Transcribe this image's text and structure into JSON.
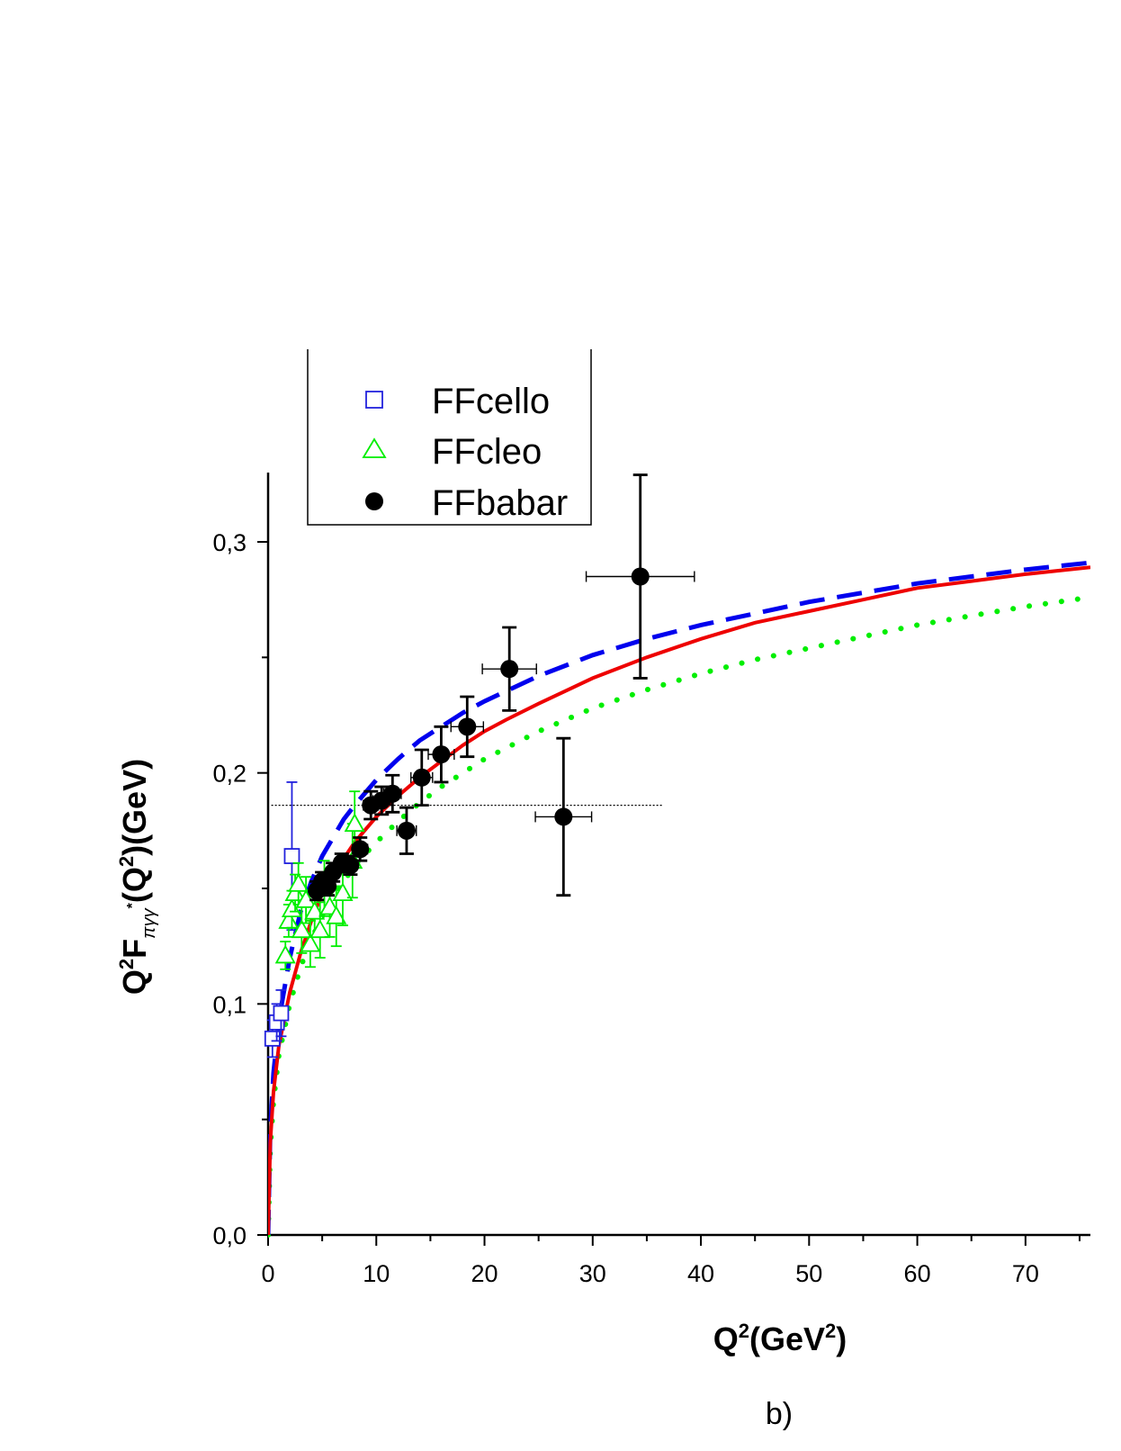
{
  "chart_data": {
    "type": "scatter",
    "caption": "b)",
    "xlabel": {
      "base": "Q",
      "sup1": "2",
      "mid": "(GeV",
      "sup2": "2",
      "end": ")"
    },
    "ylabel": {
      "q": "Q",
      "sup": "2",
      "f": "F",
      "sub": "πγγ",
      "subsup": "*",
      "rest1": "(Q",
      "sup3": "2",
      "rest2": ")(GeV)"
    },
    "xlim": [
      0,
      76
    ],
    "ylim": [
      0,
      0.33
    ],
    "x_ticks": [
      "0",
      "10",
      "20",
      "30",
      "40",
      "50",
      "60",
      "70"
    ],
    "y_ticks": [
      "0,0",
      "0,1",
      "0,2",
      "0,3"
    ],
    "legend": [
      "FFcello",
      "FFcleo",
      "FFbabar"
    ],
    "colors": {
      "cello": "#2222dd",
      "cleo": "#00ee00",
      "babar": "#000000",
      "dashed": "#0000ee",
      "solid": "#ee0000",
      "dotted": "#00ee00"
    },
    "reference_line": {
      "y": 0.186,
      "x_range": [
        0.3,
        36.5
      ]
    },
    "series": [
      {
        "name": "FFcello",
        "marker": "square",
        "points": [
          {
            "x": 0.4,
            "y": 0.085,
            "ey": 0.008
          },
          {
            "x": 0.8,
            "y": 0.092,
            "ey": 0.008
          },
          {
            "x": 1.2,
            "y": 0.096,
            "ey": 0.01
          },
          {
            "x": 2.2,
            "y": 0.164,
            "ey": 0.032
          }
        ]
      },
      {
        "name": "FFcleo",
        "marker": "triangle",
        "points": [
          {
            "x": 1.6,
            "y": 0.121,
            "ey": 0.006
          },
          {
            "x": 1.9,
            "y": 0.136,
            "ey": 0.007
          },
          {
            "x": 2.2,
            "y": 0.141,
            "ey": 0.008
          },
          {
            "x": 2.5,
            "y": 0.148,
            "ey": 0.008
          },
          {
            "x": 2.8,
            "y": 0.152,
            "ey": 0.009
          },
          {
            "x": 3.1,
            "y": 0.132,
            "ey": 0.01
          },
          {
            "x": 3.5,
            "y": 0.145,
            "ey": 0.01
          },
          {
            "x": 3.9,
            "y": 0.126,
            "ey": 0.01
          },
          {
            "x": 4.3,
            "y": 0.14,
            "ey": 0.011
          },
          {
            "x": 4.8,
            "y": 0.132,
            "ey": 0.012
          },
          {
            "x": 5.2,
            "y": 0.15,
            "ey": 0.012
          },
          {
            "x": 5.7,
            "y": 0.142,
            "ey": 0.013
          },
          {
            "x": 6.3,
            "y": 0.138,
            "ey": 0.013
          },
          {
            "x": 6.9,
            "y": 0.148,
            "ey": 0.014
          },
          {
            "x": 7.8,
            "y": 0.162,
            "ey": 0.016
          },
          {
            "x": 8.0,
            "y": 0.178,
            "ey": 0.014
          }
        ]
      },
      {
        "name": "FFbabar",
        "marker": "circle",
        "points": [
          {
            "x": 4.5,
            "y": 0.149,
            "ey": 0.004,
            "ex": 0.5
          },
          {
            "x": 5.0,
            "y": 0.153,
            "ey": 0.004,
            "ex": 0.5
          },
          {
            "x": 5.5,
            "y": 0.151,
            "ey": 0.004,
            "ex": 0.5
          },
          {
            "x": 6.0,
            "y": 0.157,
            "ey": 0.004,
            "ex": 0.5
          },
          {
            "x": 6.8,
            "y": 0.161,
            "ey": 0.004,
            "ex": 0.6
          },
          {
            "x": 7.6,
            "y": 0.16,
            "ey": 0.004,
            "ex": 0.6
          },
          {
            "x": 8.5,
            "y": 0.167,
            "ey": 0.005,
            "ex": 0.7
          },
          {
            "x": 9.5,
            "y": 0.186,
            "ey": 0.006,
            "ex": 0.7
          },
          {
            "x": 10.5,
            "y": 0.188,
            "ey": 0.006,
            "ex": 0.8
          },
          {
            "x": 11.5,
            "y": 0.191,
            "ey": 0.008,
            "ex": 0.8
          },
          {
            "x": 12.8,
            "y": 0.175,
            "ey": 0.01,
            "ex": 0.9
          },
          {
            "x": 14.2,
            "y": 0.198,
            "ey": 0.012,
            "ex": 1.0
          },
          {
            "x": 16.0,
            "y": 0.208,
            "ey": 0.012,
            "ex": 1.2
          },
          {
            "x": 18.4,
            "y": 0.22,
            "ey": 0.013,
            "ex": 1.5
          },
          {
            "x": 22.3,
            "y": 0.245,
            "ey": 0.018,
            "ex": 2.5
          },
          {
            "x": 27.3,
            "y": 0.181,
            "ey": 0.034,
            "ex": 2.6
          },
          {
            "x": 34.4,
            "y": 0.285,
            "ey": 0.044,
            "ex": 5.0
          }
        ]
      }
    ],
    "curves": [
      {
        "style": "dashed",
        "x": [
          0,
          0.2,
          0.5,
          1,
          2,
          3,
          4,
          5,
          6,
          7,
          8,
          10,
          12,
          14,
          16,
          18,
          20,
          25,
          30,
          35,
          40,
          45,
          50,
          55,
          60,
          65,
          70,
          76
        ],
        "y": [
          0,
          0.045,
          0.07,
          0.093,
          0.12,
          0.14,
          0.153,
          0.164,
          0.172,
          0.18,
          0.186,
          0.197,
          0.206,
          0.214,
          0.22,
          0.226,
          0.231,
          0.242,
          0.251,
          0.258,
          0.264,
          0.269,
          0.274,
          0.278,
          0.282,
          0.285,
          0.288,
          0.291
        ]
      },
      {
        "style": "solid",
        "x": [
          0,
          0.2,
          0.5,
          1,
          2,
          3,
          4,
          5,
          6,
          7,
          8,
          10,
          12,
          14,
          16,
          18,
          20,
          22,
          25,
          30,
          35,
          40,
          45,
          50,
          55,
          60,
          65,
          70,
          76
        ],
        "y": [
          0,
          0.04,
          0.062,
          0.082,
          0.105,
          0.122,
          0.136,
          0.148,
          0.156,
          0.163,
          0.17,
          0.181,
          0.19,
          0.198,
          0.205,
          0.212,
          0.218,
          0.223,
          0.23,
          0.241,
          0.25,
          0.258,
          0.265,
          0.27,
          0.275,
          0.28,
          0.283,
          0.286,
          0.289
        ]
      },
      {
        "style": "dotted",
        "x": [
          0,
          0.2,
          0.5,
          1,
          2,
          3,
          4,
          5,
          6,
          7,
          8,
          10,
          12,
          14,
          16,
          18,
          20,
          25,
          30,
          35,
          40,
          45,
          50,
          55,
          60,
          65,
          70,
          76
        ],
        "y": [
          0,
          0.038,
          0.058,
          0.078,
          0.1,
          0.116,
          0.128,
          0.138,
          0.146,
          0.153,
          0.16,
          0.17,
          0.179,
          0.187,
          0.194,
          0.2,
          0.206,
          0.218,
          0.228,
          0.236,
          0.243,
          0.249,
          0.254,
          0.259,
          0.264,
          0.268,
          0.272,
          0.276
        ]
      }
    ]
  }
}
